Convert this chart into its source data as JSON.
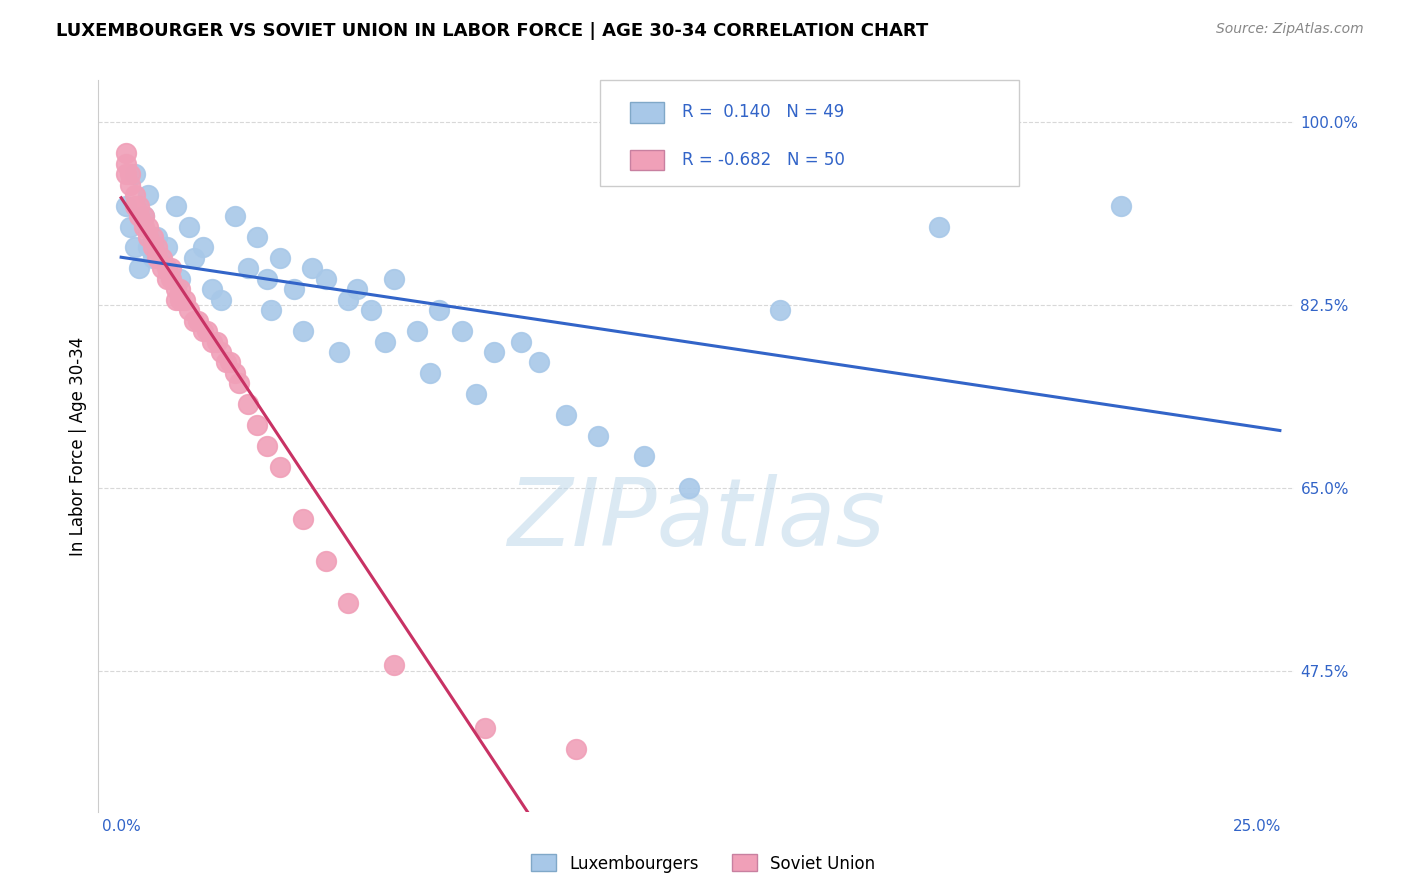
{
  "title": "LUXEMBOURGER VS SOVIET UNION IN LABOR FORCE | AGE 30-34 CORRELATION CHART",
  "source": "Source: ZipAtlas.com",
  "ylabel": "In Labor Force | Age 30-34",
  "r_lux": 0.14,
  "n_lux": 49,
  "r_sov": -0.682,
  "n_sov": 50,
  "blue_scatter_color": "#a8c8e8",
  "pink_scatter_color": "#f0a0b8",
  "blue_line_color": "#3264c8",
  "pink_line_color": "#c83264",
  "grid_color": "#d8d8d8",
  "tick_color": "#3264c8",
  "xlim": [
    -0.005,
    0.258
  ],
  "ylim": [
    0.34,
    1.04
  ],
  "ytick_positions": [
    0.475,
    0.65,
    0.825,
    1.0
  ],
  "ytick_labels": [
    "47.5%",
    "65.0%",
    "82.5%",
    "100.0%"
  ],
  "xtick_positions": [
    0.0,
    0.025,
    0.05,
    0.075,
    0.1,
    0.125,
    0.15,
    0.175,
    0.2,
    0.225,
    0.25
  ],
  "xtick_labels": [
    "0.0%",
    "",
    "",
    "",
    "",
    "",
    "",
    "",
    "",
    "",
    "25.0%"
  ],
  "lux_x": [
    0.001,
    0.002,
    0.003,
    0.003,
    0.004,
    0.005,
    0.006,
    0.006,
    0.007,
    0.008,
    0.01,
    0.012,
    0.013,
    0.015,
    0.016,
    0.018,
    0.02,
    0.022,
    0.025,
    0.028,
    0.03,
    0.032,
    0.033,
    0.035,
    0.038,
    0.04,
    0.042,
    0.045,
    0.048,
    0.05,
    0.052,
    0.055,
    0.058,
    0.06,
    0.065,
    0.068,
    0.07,
    0.075,
    0.078,
    0.082,
    0.088,
    0.092,
    0.098,
    0.105,
    0.115,
    0.125,
    0.145,
    0.18,
    0.22
  ],
  "lux_y": [
    0.92,
    0.9,
    0.88,
    0.95,
    0.86,
    0.91,
    0.88,
    0.93,
    0.87,
    0.89,
    0.88,
    0.92,
    0.85,
    0.9,
    0.87,
    0.88,
    0.84,
    0.83,
    0.91,
    0.86,
    0.89,
    0.85,
    0.82,
    0.87,
    0.84,
    0.8,
    0.86,
    0.85,
    0.78,
    0.83,
    0.84,
    0.82,
    0.79,
    0.85,
    0.8,
    0.76,
    0.82,
    0.8,
    0.74,
    0.78,
    0.79,
    0.77,
    0.72,
    0.7,
    0.68,
    0.65,
    0.82,
    0.9,
    0.92
  ],
  "sov_x": [
    0.001,
    0.001,
    0.001,
    0.002,
    0.002,
    0.003,
    0.003,
    0.004,
    0.004,
    0.005,
    0.005,
    0.006,
    0.006,
    0.007,
    0.007,
    0.008,
    0.008,
    0.009,
    0.009,
    0.01,
    0.01,
    0.011,
    0.011,
    0.012,
    0.012,
    0.013,
    0.013,
    0.014,
    0.015,
    0.016,
    0.017,
    0.018,
    0.019,
    0.02,
    0.021,
    0.022,
    0.023,
    0.024,
    0.025,
    0.026,
    0.028,
    0.03,
    0.032,
    0.035,
    0.04,
    0.045,
    0.05,
    0.06,
    0.08,
    0.1
  ],
  "sov_y": [
    0.97,
    0.96,
    0.95,
    0.95,
    0.94,
    0.93,
    0.92,
    0.91,
    0.92,
    0.9,
    0.91,
    0.9,
    0.89,
    0.89,
    0.88,
    0.88,
    0.87,
    0.87,
    0.86,
    0.86,
    0.85,
    0.86,
    0.85,
    0.84,
    0.83,
    0.84,
    0.83,
    0.83,
    0.82,
    0.81,
    0.81,
    0.8,
    0.8,
    0.79,
    0.79,
    0.78,
    0.77,
    0.77,
    0.76,
    0.75,
    0.73,
    0.71,
    0.69,
    0.67,
    0.62,
    0.58,
    0.54,
    0.48,
    0.42,
    0.4
  ]
}
